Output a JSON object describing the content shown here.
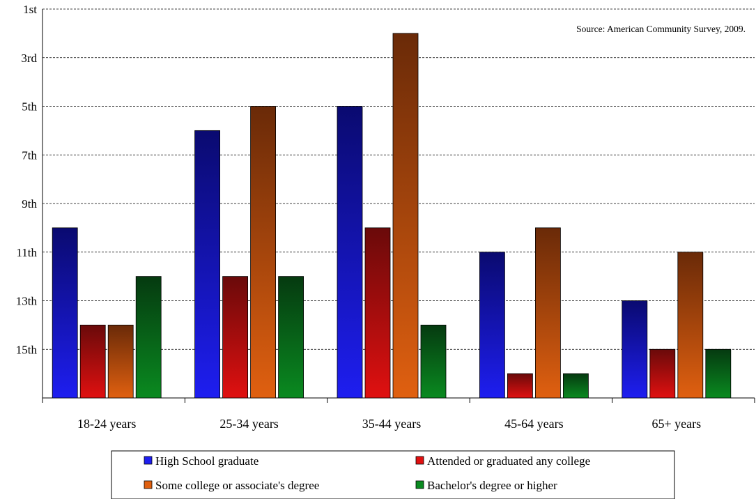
{
  "chart_data": {
    "type": "bar",
    "y_axis_reversed": true,
    "ylim": [
      1,
      17
    ],
    "y_tick_labels": [
      "1st",
      "3rd",
      "5th",
      "7th",
      "9th",
      "11th",
      "13th",
      "15th"
    ],
    "y_tick_values": [
      1,
      3,
      5,
      7,
      9,
      11,
      13,
      15
    ],
    "grid": "horizontal-dashed",
    "legend_placement": "bottom",
    "categories": [
      "18-24 years",
      "25-34 years",
      "35-44 years",
      "45-64 years",
      "65+ years"
    ],
    "series": [
      {
        "name": "High School graduate",
        "values": [
          10,
          6,
          5,
          11,
          13
        ],
        "color": "#1e1ef0"
      },
      {
        "name": "Attended or graduated any college",
        "values": [
          14,
          12,
          10,
          16,
          15
        ],
        "color": "#e01010"
      },
      {
        "name": "Some college or associate's degree",
        "values": [
          14,
          5,
          2,
          10,
          11
        ],
        "color": "#e06010"
      },
      {
        "name": "Bachelor's degree or higher",
        "values": [
          12,
          12,
          14,
          16,
          15
        ],
        "color": "#0a8a20"
      }
    ],
    "source_note": "Source: American Community Survey, 2009."
  }
}
